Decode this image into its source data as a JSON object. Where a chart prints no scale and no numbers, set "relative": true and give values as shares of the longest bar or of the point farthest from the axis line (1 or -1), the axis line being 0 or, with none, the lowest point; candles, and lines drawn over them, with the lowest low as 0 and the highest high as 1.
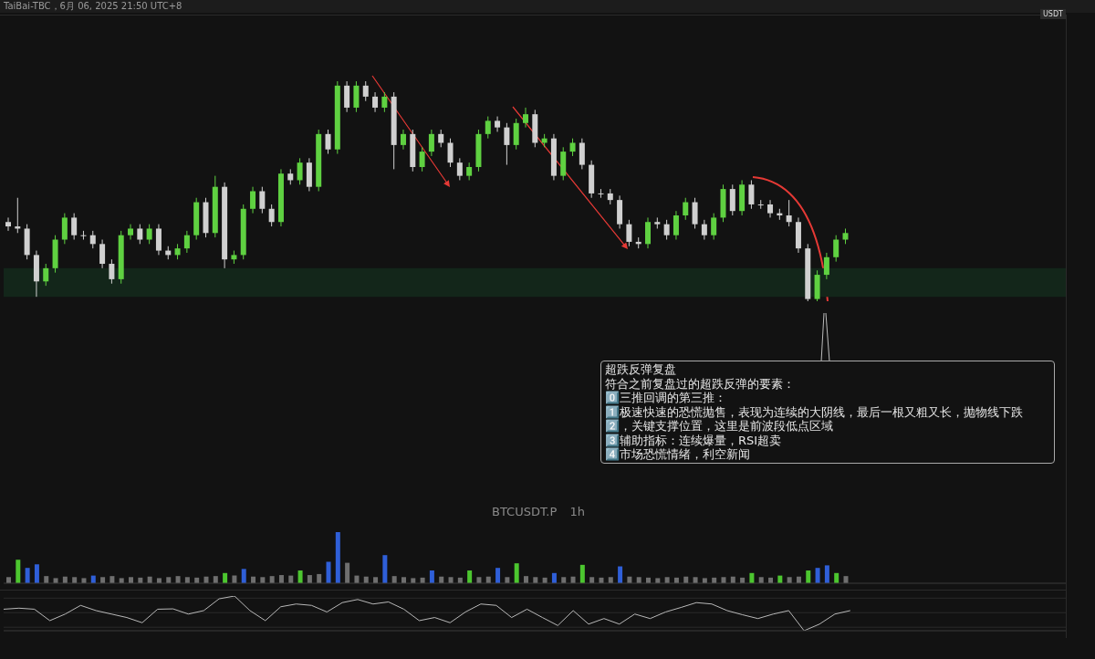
{
  "chart_data": [
    {
      "type": "candlestick",
      "title": "BTCUSDT.P 1h",
      "ylabel": "USDT",
      "relative": true,
      "annotations": [
        "TaiBai-TBC，6月 06, 2025 21:50 UTC+8",
        "超跌反弹复盘",
        "符合之前复盘过的超跌反弹的要素：",
        "0️⃣三推回调的第三推：",
        "1️⃣极速快速的恐慌抛售，表现为连续的大阴线，最后一根又粗又长，抛物线下跌",
        "2️⃣，关键支撑位置，这里是前波段低点区域",
        "3️⃣辅助指标：连续爆量，RSI超卖",
        "4️⃣市场恐慌情绪，利空新闻"
      ],
      "categories": [
        null,
        null,
        null,
        null,
        null,
        null,
        null,
        null,
        null,
        null,
        null,
        null,
        null,
        null,
        null,
        null,
        null,
        null,
        null,
        null,
        null,
        null,
        null,
        null,
        null,
        null,
        null,
        null,
        null,
        null,
        null,
        null,
        null,
        null,
        null,
        null,
        null,
        null,
        null,
        null,
        null,
        null,
        null,
        null,
        null,
        null,
        null,
        null,
        null,
        null,
        null,
        null,
        null,
        null,
        null,
        null,
        null,
        null,
        null,
        null,
        null,
        null,
        null,
        null,
        null,
        null,
        null,
        null,
        null,
        null,
        null,
        null,
        null,
        null,
        null,
        null,
        null,
        null,
        null,
        null,
        null,
        null,
        null,
        null,
        null,
        null,
        null,
        null,
        null,
        null
      ],
      "ohlc": [
        [
          0.36,
          0.38,
          0.32,
          0.34
        ],
        [
          0.34,
          0.47,
          0.31,
          0.33
        ],
        [
          0.33,
          0.35,
          0.19,
          0.21
        ],
        [
          0.21,
          0.23,
          0.02,
          0.09
        ],
        [
          0.09,
          0.17,
          0.07,
          0.15
        ],
        [
          0.15,
          0.3,
          0.13,
          0.28
        ],
        [
          0.28,
          0.4,
          0.26,
          0.38
        ],
        [
          0.38,
          0.4,
          0.28,
          0.3
        ],
        [
          0.3,
          0.32,
          0.28,
          0.3
        ],
        [
          0.3,
          0.32,
          0.24,
          0.26
        ],
        [
          0.26,
          0.28,
          0.15,
          0.17
        ],
        [
          0.17,
          0.19,
          0.08,
          0.1
        ],
        [
          0.1,
          0.32,
          0.08,
          0.3
        ],
        [
          0.3,
          0.35,
          0.28,
          0.33
        ],
        [
          0.33,
          0.35,
          0.26,
          0.28
        ],
        [
          0.28,
          0.35,
          0.26,
          0.33
        ],
        [
          0.33,
          0.35,
          0.21,
          0.23
        ],
        [
          0.23,
          0.25,
          0.19,
          0.21
        ],
        [
          0.21,
          0.26,
          0.19,
          0.24
        ],
        [
          0.24,
          0.32,
          0.22,
          0.3
        ],
        [
          0.3,
          0.47,
          0.28,
          0.45
        ],
        [
          0.45,
          0.47,
          0.29,
          0.31
        ],
        [
          0.31,
          0.57,
          0.29,
          0.52
        ],
        [
          0.52,
          0.54,
          0.15,
          0.19
        ],
        [
          0.19,
          0.23,
          0.17,
          0.21
        ],
        [
          0.21,
          0.44,
          0.19,
          0.42
        ],
        [
          0.42,
          0.52,
          0.4,
          0.5
        ],
        [
          0.5,
          0.52,
          0.4,
          0.42
        ],
        [
          0.42,
          0.44,
          0.34,
          0.36
        ],
        [
          0.36,
          0.6,
          0.34,
          0.58
        ],
        [
          0.58,
          0.6,
          0.53,
          0.55
        ],
        [
          0.55,
          0.65,
          0.53,
          0.63
        ],
        [
          0.63,
          0.65,
          0.5,
          0.52
        ],
        [
          0.52,
          0.78,
          0.5,
          0.76
        ],
        [
          0.76,
          0.78,
          0.67,
          0.69
        ],
        [
          0.69,
          1,
          0.67,
          0.98
        ],
        [
          0.98,
          1,
          0.86,
          0.88
        ],
        [
          0.88,
          1,
          0.86,
          0.98
        ],
        [
          0.98,
          1,
          0.91,
          0.93
        ],
        [
          0.93,
          0.95,
          0.86,
          0.88
        ],
        [
          0.88,
          0.95,
          0.86,
          0.93
        ],
        [
          0.93,
          0.95,
          0.6,
          0.71
        ],
        [
          0.71,
          0.78,
          0.69,
          0.76
        ],
        [
          0.76,
          0.78,
          0.59,
          0.61
        ],
        [
          0.61,
          0.7,
          0.59,
          0.68
        ],
        [
          0.68,
          0.78,
          0.66,
          0.76
        ],
        [
          0.76,
          0.78,
          0.7,
          0.72
        ],
        [
          0.72,
          0.74,
          0.61,
          0.63
        ],
        [
          0.63,
          0.65,
          0.55,
          0.57
        ],
        [
          0.57,
          0.63,
          0.55,
          0.61
        ],
        [
          0.61,
          0.78,
          0.59,
          0.76
        ],
        [
          0.76,
          0.84,
          0.74,
          0.82
        ],
        [
          0.82,
          0.84,
          0.77,
          0.79
        ],
        [
          0.79,
          0.81,
          0.62,
          0.71
        ],
        [
          0.71,
          0.83,
          0.69,
          0.81
        ],
        [
          0.81,
          0.88,
          0.79,
          0.85
        ],
        [
          0.85,
          0.87,
          0.7,
          0.72
        ],
        [
          0.72,
          0.76,
          0.7,
          0.74
        ],
        [
          0.74,
          0.76,
          0.55,
          0.57
        ],
        [
          0.57,
          0.7,
          0.55,
          0.68
        ],
        [
          0.68,
          0.74,
          0.66,
          0.72
        ],
        [
          0.72,
          0.74,
          0.6,
          0.62
        ],
        [
          0.62,
          0.64,
          0.47,
          0.49
        ],
        [
          0.49,
          0.51,
          0.47,
          0.49
        ],
        [
          0.49,
          0.51,
          0.44,
          0.46
        ],
        [
          0.46,
          0.48,
          0.33,
          0.35
        ],
        [
          0.35,
          0.37,
          0.25,
          0.27
        ],
        [
          0.27,
          0.29,
          0.24,
          0.26
        ],
        [
          0.26,
          0.38,
          0.24,
          0.36
        ],
        [
          0.36,
          0.38,
          0.33,
          0.35
        ],
        [
          0.35,
          0.37,
          0.28,
          0.3
        ],
        [
          0.3,
          0.41,
          0.28,
          0.39
        ],
        [
          0.39,
          0.47,
          0.37,
          0.45
        ],
        [
          0.45,
          0.47,
          0.33,
          0.35
        ],
        [
          0.35,
          0.37,
          0.28,
          0.3
        ],
        [
          0.3,
          0.4,
          0.28,
          0.38
        ],
        [
          0.38,
          0.53,
          0.36,
          0.51
        ],
        [
          0.51,
          0.53,
          0.39,
          0.41
        ],
        [
          0.41,
          0.55,
          0.39,
          0.53
        ],
        [
          0.53,
          0.55,
          0.42,
          0.44
        ],
        [
          0.44,
          0.46,
          0.42,
          0.44
        ],
        [
          0.44,
          0.46,
          0.38,
          0.4
        ],
        [
          0.4,
          0.42,
          0.37,
          0.39
        ],
        [
          0.39,
          0.46,
          0.34,
          0.36
        ],
        [
          0.36,
          0.38,
          0.22,
          0.24
        ],
        [
          0.24,
          0.26,
          0,
          0.01
        ],
        [
          0.01,
          0.14,
          0,
          0.12
        ],
        [
          0.12,
          0.22,
          0.1,
          0.2
        ],
        [
          0.2,
          0.3,
          0.18,
          0.28
        ],
        [
          0.28,
          0.33,
          0.26,
          0.31
        ]
      ],
      "colors": [
        "#d0d0d0",
        "#d0d0d0",
        "#d0d0d0",
        "#d0d0d0",
        "#5fd141",
        "#5fd141",
        "#5fd141",
        "#d0d0d0",
        "#d0d0d0",
        "#d0d0d0",
        "#d0d0d0",
        "#d0d0d0",
        "#5fd141",
        "#5fd141",
        "#d0d0d0",
        "#5fd141",
        "#d0d0d0",
        "#d0d0d0",
        "#5fd141",
        "#5fd141",
        "#5fd141",
        "#d0d0d0",
        "#5fd141",
        "#d0d0d0",
        "#5fd141",
        "#5fd141",
        "#5fd141",
        "#d0d0d0",
        "#d0d0d0",
        "#5fd141",
        "#d0d0d0",
        "#5fd141",
        "#d0d0d0",
        "#5fd141",
        "#d0d0d0",
        "#5fd141",
        "#d0d0d0",
        "#5fd141",
        "#d0d0d0",
        "#d0d0d0",
        "#5fd141",
        "#d0d0d0",
        "#5fd141",
        "#d0d0d0",
        "#5fd141",
        "#5fd141",
        "#d0d0d0",
        "#d0d0d0",
        "#d0d0d0",
        "#5fd141",
        "#5fd141",
        "#5fd141",
        "#d0d0d0",
        "#d0d0d0",
        "#5fd141",
        "#5fd141",
        "#d0d0d0",
        "#5fd141",
        "#d0d0d0",
        "#5fd141",
        "#5fd141",
        "#d0d0d0",
        "#d0d0d0",
        "#d0d0d0",
        "#d0d0d0",
        "#d0d0d0",
        "#d0d0d0",
        "#d0d0d0",
        "#5fd141",
        "#d0d0d0",
        "#d0d0d0",
        "#5fd141",
        "#5fd141",
        "#d0d0d0",
        "#d0d0d0",
        "#5fd141",
        "#5fd141",
        "#d0d0d0",
        "#5fd141",
        "#d0d0d0",
        "#d0d0d0",
        "#d0d0d0",
        "#d0d0d0",
        "#d0d0d0",
        "#d0d0d0",
        "#d0d0d0",
        "#5fd141",
        "#5fd141",
        "#5fd141",
        "#5fd141"
      ],
      "bands": [
        {
          "axis": "y",
          "from": 0.02,
          "to": 0.15,
          "color": "#13261a"
        }
      ]
    },
    {
      "type": "bar",
      "relative": true,
      "categories": [
        null,
        null,
        null,
        null,
        null,
        null,
        null,
        null,
        null,
        null,
        null,
        null,
        null,
        null,
        null,
        null,
        null,
        null,
        null,
        null,
        null,
        null,
        null,
        null,
        null,
        null,
        null,
        null,
        null,
        null,
        null,
        null,
        null,
        null,
        null,
        null,
        null,
        null,
        null,
        null,
        null,
        null,
        null,
        null,
        null,
        null,
        null,
        null,
        null,
        null,
        null,
        null,
        null,
        null,
        null,
        null,
        null,
        null,
        null,
        null,
        null,
        null,
        null,
        null,
        null,
        null,
        null,
        null,
        null,
        null,
        null,
        null,
        null,
        null,
        null,
        null,
        null,
        null,
        null,
        null,
        null,
        null,
        null,
        null,
        null,
        null,
        null,
        null,
        null,
        null
      ],
      "values": [
        0.12,
        0.46,
        0.3,
        0.37,
        0.14,
        0.1,
        0.13,
        0.12,
        0.1,
        0.15,
        0.12,
        0.14,
        0.1,
        0.12,
        0.11,
        0.13,
        0.1,
        0.12,
        0.14,
        0.12,
        0.11,
        0.13,
        0.14,
        0.2,
        0.15,
        0.28,
        0.13,
        0.12,
        0.14,
        0.16,
        0.15,
        0.25,
        0.16,
        0.18,
        0.42,
        1,
        0.4,
        0.15,
        0.13,
        0.12,
        0.55,
        0.14,
        0.12,
        0.1,
        0.11,
        0.25,
        0.13,
        0.12,
        0.11,
        0.25,
        0.12,
        0.13,
        0.3,
        0.12,
        0.39,
        0.14,
        0.12,
        0.11,
        0.2,
        0.12,
        0.13,
        0.36,
        0.12,
        0.11,
        0.12,
        0.33,
        0.13,
        0.12,
        0.11,
        0.1,
        0.12,
        0.11,
        0.13,
        0.12,
        0.1,
        0.11,
        0.12,
        0.13,
        0.11,
        0.2,
        0.12,
        0.11,
        0.15,
        0.12,
        0.13,
        0.25,
        0.3,
        0.35,
        0.2,
        0.14
      ],
      "colors": [
        "#6f6f6f",
        "#4cc62f",
        "#2f5fd8",
        "#2f5fd8",
        "#6f6f6f",
        "#6f6f6f",
        "#6f6f6f",
        "#6f6f6f",
        "#6f6f6f",
        "#2f5fd8",
        "#6f6f6f",
        "#6f6f6f",
        "#6f6f6f",
        "#6f6f6f",
        "#6f6f6f",
        "#6f6f6f",
        "#6f6f6f",
        "#6f6f6f",
        "#6f6f6f",
        "#6f6f6f",
        "#6f6f6f",
        "#6f6f6f",
        "#6f6f6f",
        "#4cc62f",
        "#6f6f6f",
        "#2f5fd8",
        "#6f6f6f",
        "#6f6f6f",
        "#6f6f6f",
        "#6f6f6f",
        "#6f6f6f",
        "#4cc62f",
        "#6f6f6f",
        "#6f6f6f",
        "#2f5fd8",
        "#2f5fd8",
        "#6f6f6f",
        "#6f6f6f",
        "#6f6f6f",
        "#6f6f6f",
        "#2f5fd8",
        "#6f6f6f",
        "#6f6f6f",
        "#6f6f6f",
        "#6f6f6f",
        "#2f5fd8",
        "#6f6f6f",
        "#6f6f6f",
        "#6f6f6f",
        "#4cc62f",
        "#6f6f6f",
        "#6f6f6f",
        "#2f5fd8",
        "#6f6f6f",
        "#4cc62f",
        "#6f6f6f",
        "#6f6f6f",
        "#6f6f6f",
        "#2f5fd8",
        "#6f6f6f",
        "#6f6f6f",
        "#4cc62f",
        "#6f6f6f",
        "#6f6f6f",
        "#6f6f6f",
        "#2f5fd8",
        "#6f6f6f",
        "#6f6f6f",
        "#6f6f6f",
        "#6f6f6f",
        "#6f6f6f",
        "#6f6f6f",
        "#6f6f6f",
        "#6f6f6f",
        "#6f6f6f",
        "#6f6f6f",
        "#6f6f6f",
        "#6f6f6f",
        "#6f6f6f",
        "#4cc62f",
        "#6f6f6f",
        "#6f6f6f",
        "#4cc62f",
        "#6f6f6f",
        "#6f6f6f",
        "#4cc62f",
        "#2f5fd8",
        "#2f5fd8",
        "#4cc62f",
        "#6f6f6f"
      ]
    },
    {
      "type": "line",
      "relative": true,
      "categories": [
        null,
        null,
        null,
        null,
        null,
        null,
        null,
        null,
        null,
        null,
        null,
        null,
        null,
        null,
        null,
        null,
        null,
        null,
        null,
        null,
        null,
        null,
        null,
        null,
        null,
        null,
        null,
        null,
        null,
        null,
        null,
        null,
        null,
        null,
        null,
        null,
        null,
        null,
        null,
        null,
        null,
        null,
        null,
        null,
        null,
        null,
        null,
        null,
        null,
        null,
        null,
        null,
        null,
        null,
        null,
        null
      ],
      "series": [
        {
          "color": "#b8b8b8",
          "values": [
            0.62,
            0.65,
            0.62,
            0.29,
            0.48,
            0.73,
            0.58,
            0.48,
            0.38,
            0.23,
            0.62,
            0.63,
            0.48,
            0.58,
            0.92,
            1,
            0.58,
            0.29,
            0.69,
            0.77,
            0.73,
            0.54,
            0.81,
            0.9,
            0.77,
            0.83,
            0.62,
            0.29,
            0.38,
            0.23,
            0.54,
            0.77,
            0.73,
            0.38,
            0.62,
            0.38,
            0.15,
            0.58,
            0.19,
            0.35,
            0.19,
            0.48,
            0.35,
            0.54,
            0.67,
            0.81,
            0.77,
            0.58,
            0.46,
            0.35,
            0.48,
            0.58,
            0,
            0.19,
            0.48,
            0.58
          ]
        }
      ],
      "ref_lines": [
        {
          "axis": "y",
          "value": 0.94,
          "color": "#2a2a2a"
        },
        {
          "axis": "y",
          "value": 0.52,
          "color": "#2a2a2a"
        },
        {
          "axis": "y",
          "value": 0.1,
          "color": "#2a2a2a"
        }
      ]
    }
  ]
}
